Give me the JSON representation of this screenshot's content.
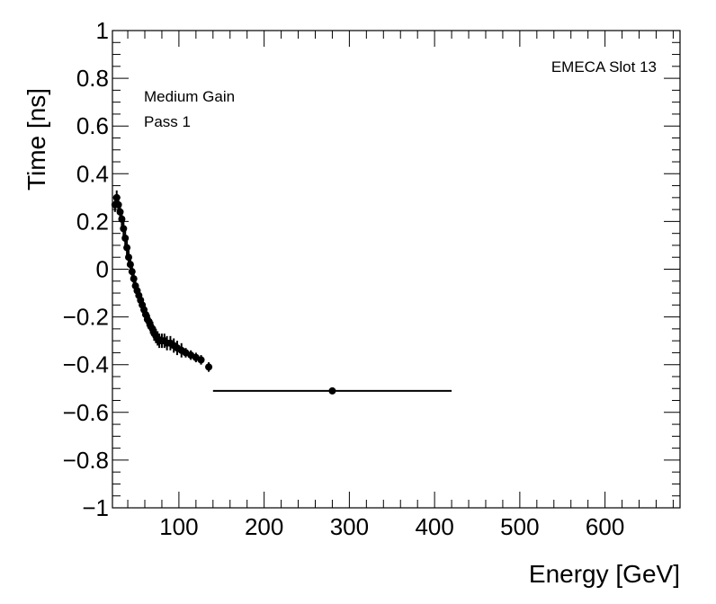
{
  "chart_data": {
    "type": "scatter",
    "title": "",
    "xlabel": "Energy [GeV]",
    "ylabel": "Time [ns]",
    "xlim": [
      22,
      688
    ],
    "ylim": [
      -1,
      1
    ],
    "x_ticks": [
      100,
      200,
      300,
      400,
      500,
      600
    ],
    "y_ticks": [
      -1,
      -0.8,
      -0.6,
      -0.4,
      -0.2,
      0,
      0.2,
      0.4,
      0.6,
      0.8,
      1
    ],
    "y_tick_labels": [
      "−1",
      "−0.8",
      "−0.6",
      "−0.4",
      "−0.2",
      "0",
      "0.2",
      "0.4",
      "0.6",
      "0.8",
      "1"
    ],
    "x_tick_labels": [
      "100",
      "200",
      "300",
      "400",
      "500",
      "600"
    ],
    "annotations": {
      "slot": "EMECA Slot 13",
      "gain": "Medium Gain",
      "pass": "Pass 1"
    },
    "series": [
      {
        "name": "Pass 1",
        "points": [
          {
            "x": 25,
            "y": 0.27,
            "yerr": 0.03
          },
          {
            "x": 27,
            "y": 0.3,
            "yerr": 0.03
          },
          {
            "x": 29,
            "y": 0.27,
            "yerr": 0.03
          },
          {
            "x": 31,
            "y": 0.24,
            "yerr": 0.03
          },
          {
            "x": 33,
            "y": 0.21,
            "yerr": 0.03
          },
          {
            "x": 35,
            "y": 0.17,
            "yerr": 0.03
          },
          {
            "x": 37,
            "y": 0.13,
            "yerr": 0.03
          },
          {
            "x": 39,
            "y": 0.09,
            "yerr": 0.03
          },
          {
            "x": 41,
            "y": 0.05,
            "yerr": 0.03
          },
          {
            "x": 43,
            "y": 0.02,
            "yerr": 0.03
          },
          {
            "x": 45,
            "y": -0.01,
            "yerr": 0.03
          },
          {
            "x": 47,
            "y": -0.04,
            "yerr": 0.03
          },
          {
            "x": 49,
            "y": -0.07,
            "yerr": 0.03
          },
          {
            "x": 51,
            "y": -0.09,
            "yerr": 0.03
          },
          {
            "x": 53,
            "y": -0.11,
            "yerr": 0.03
          },
          {
            "x": 55,
            "y": -0.13,
            "yerr": 0.03
          },
          {
            "x": 57,
            "y": -0.15,
            "yerr": 0.03
          },
          {
            "x": 59,
            "y": -0.17,
            "yerr": 0.03
          },
          {
            "x": 61,
            "y": -0.19,
            "yerr": 0.03
          },
          {
            "x": 63,
            "y": -0.21,
            "yerr": 0.03
          },
          {
            "x": 65,
            "y": -0.22,
            "yerr": 0.03
          },
          {
            "x": 67,
            "y": -0.24,
            "yerr": 0.03
          },
          {
            "x": 69,
            "y": -0.25,
            "yerr": 0.03
          },
          {
            "x": 71,
            "y": -0.27,
            "yerr": 0.03
          },
          {
            "x": 73,
            "y": -0.28,
            "yerr": 0.03
          },
          {
            "x": 75,
            "y": -0.29,
            "yerr": 0.03
          },
          {
            "x": 77,
            "y": -0.3,
            "yerr": 0.03
          },
          {
            "x": 80,
            "y": -0.3,
            "yerr": 0.03
          },
          {
            "x": 83,
            "y": -0.3,
            "yerr": 0.03
          },
          {
            "x": 86,
            "y": -0.31,
            "yerr": 0.03
          },
          {
            "x": 90,
            "y": -0.31,
            "yerr": 0.03
          },
          {
            "x": 94,
            "y": -0.32,
            "yerr": 0.03
          },
          {
            "x": 98,
            "y": -0.33,
            "yerr": 0.03
          },
          {
            "x": 103,
            "y": -0.34,
            "yerr": 0.03
          },
          {
            "x": 108,
            "y": -0.35,
            "yerr": 0.02
          },
          {
            "x": 114,
            "y": -0.36,
            "yerr": 0.02
          },
          {
            "x": 120,
            "y": -0.37,
            "yerr": 0.02
          },
          {
            "x": 126,
            "y": -0.38,
            "yerr": 0.02
          },
          {
            "x": 135,
            "y": -0.41,
            "yerr": 0.02
          },
          {
            "x": 280,
            "y": -0.51,
            "yerr": 0.0,
            "xerr": [
              140,
              420
            ]
          }
        ]
      }
    ]
  }
}
